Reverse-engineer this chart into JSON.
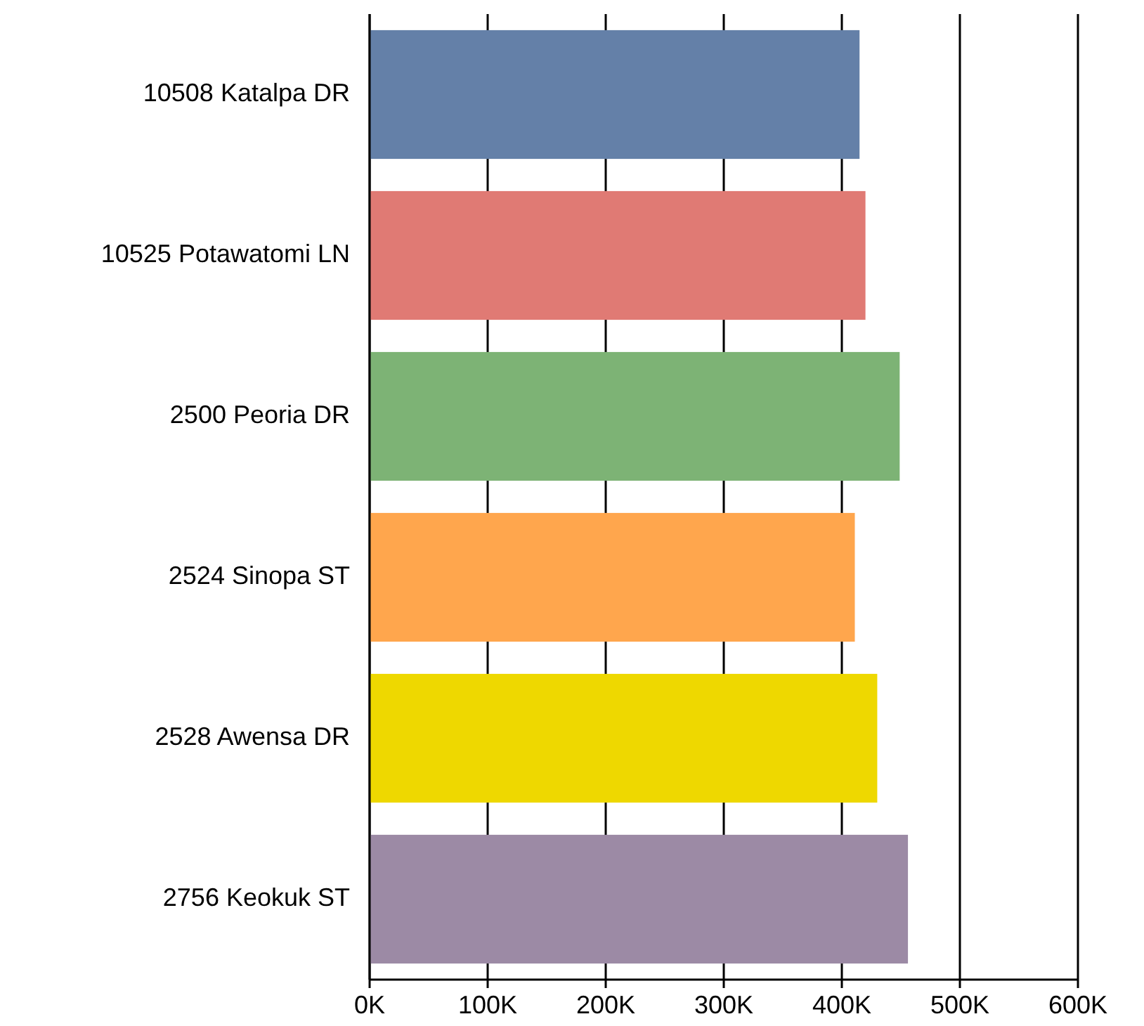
{
  "chart_data": {
    "type": "bar",
    "orientation": "horizontal",
    "categories": [
      "10508 Katalpa DR",
      "10525 Potawatomi LN",
      "2500 Peoria DR",
      "2524 Sinopa ST",
      "2528 Awensa DR",
      "2756 Keokuk ST"
    ],
    "values": [
      415000,
      420000,
      449000,
      411000,
      430000,
      456000
    ],
    "colors": [
      "#6480a8",
      "#e07a74",
      "#7db375",
      "#ffa64d",
      "#eed800",
      "#9c8aa5"
    ],
    "xlim": [
      0,
      600000
    ],
    "xticks": [
      {
        "value": 0,
        "label": "0K"
      },
      {
        "value": 100000,
        "label": "100K"
      },
      {
        "value": 200000,
        "label": "200K"
      },
      {
        "value": 300000,
        "label": "300K"
      },
      {
        "value": 400000,
        "label": "400K"
      },
      {
        "value": 500000,
        "label": "500K"
      },
      {
        "value": 600000,
        "label": "600K"
      }
    ],
    "grid": "x"
  }
}
